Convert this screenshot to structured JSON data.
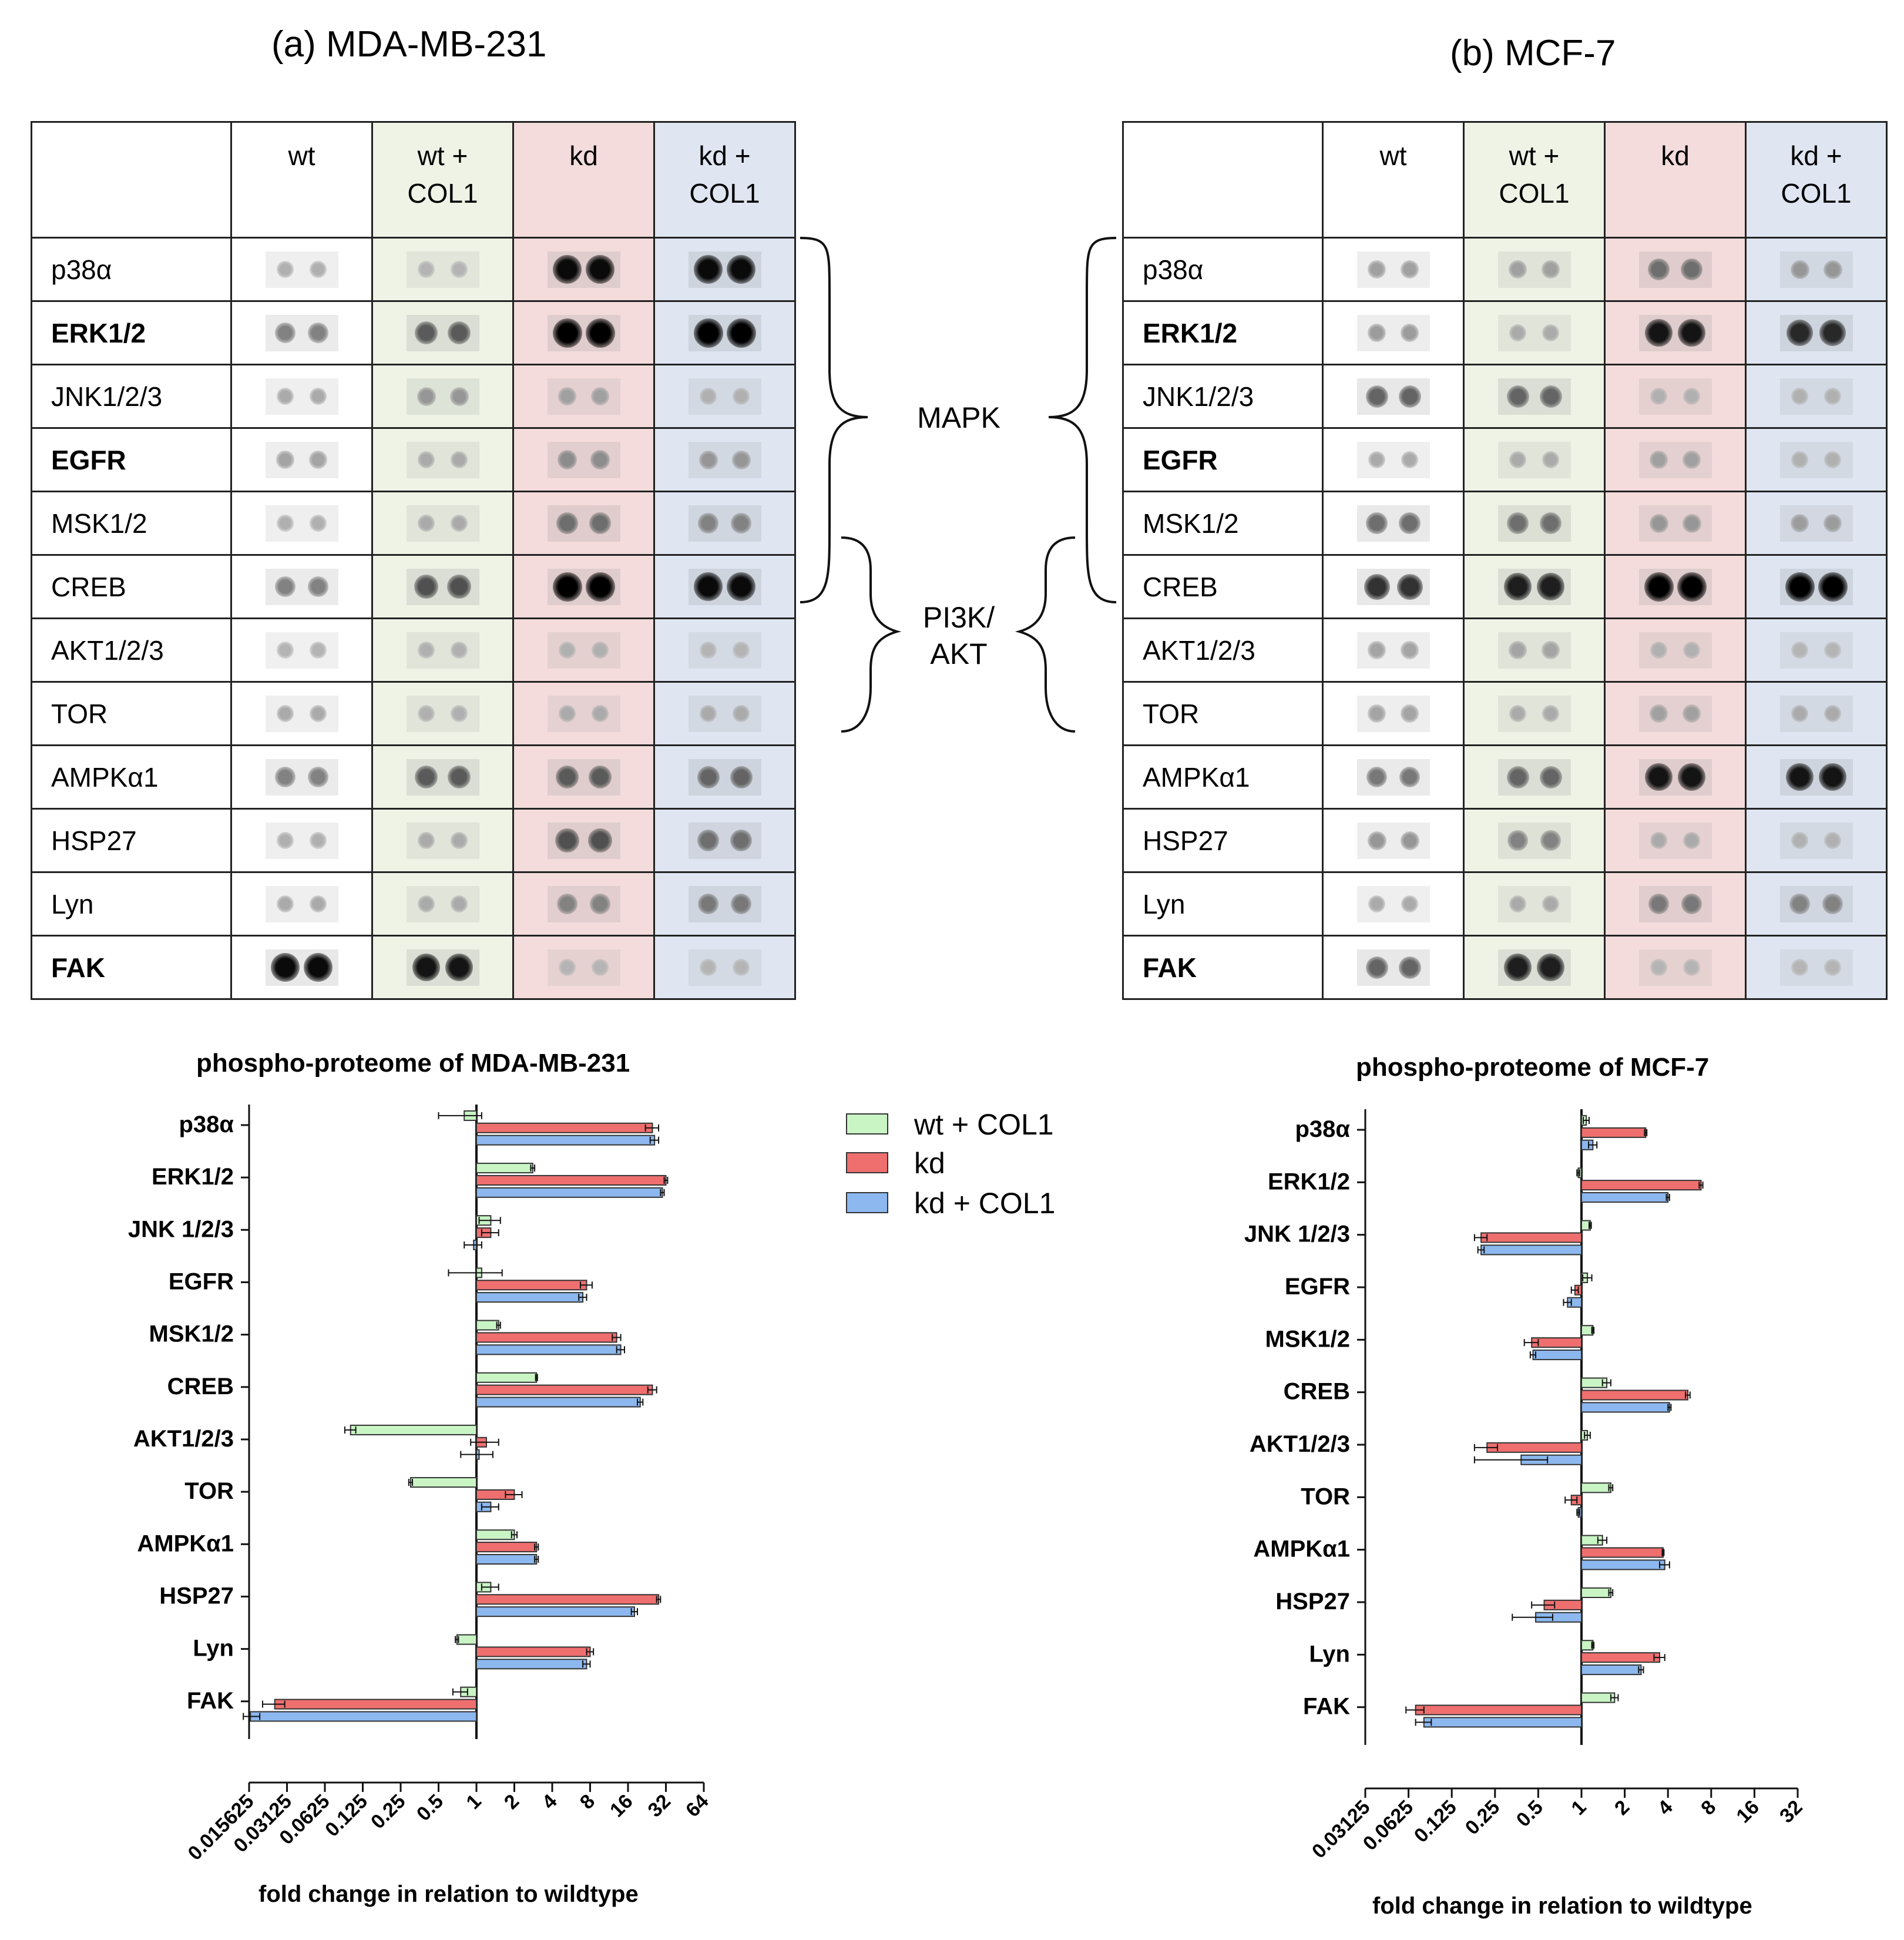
{
  "panels": [
    {
      "title": "(a) MDA-MB-231",
      "columns": [
        "wt",
        "wt +\nCOL1",
        "kd",
        "kd +\nCOL1"
      ],
      "rows": [
        {
          "label": "p38α",
          "bold": false,
          "spots": [
            0.12,
            0.1,
            0.95,
            0.95
          ]
        },
        {
          "label": "ERK1/2",
          "bold": true,
          "spots": [
            0.35,
            0.55,
            1.0,
            1.0
          ]
        },
        {
          "label": "JNK1/2/3",
          "bold": false,
          "spots": [
            0.15,
            0.25,
            0.2,
            0.12
          ]
        },
        {
          "label": "EGFR",
          "bold": true,
          "spots": [
            0.18,
            0.15,
            0.3,
            0.25
          ]
        },
        {
          "label": "MSK1/2",
          "bold": false,
          "spots": [
            0.12,
            0.15,
            0.45,
            0.35
          ]
        },
        {
          "label": "CREB",
          "bold": false,
          "spots": [
            0.35,
            0.6,
            1.0,
            0.95
          ]
        },
        {
          "label": "AKT1/2/3",
          "bold": false,
          "spots": [
            0.1,
            0.12,
            0.12,
            0.1
          ]
        },
        {
          "label": "TOR",
          "bold": false,
          "spots": [
            0.15,
            0.12,
            0.15,
            0.15
          ]
        },
        {
          "label": "AMPKα1",
          "bold": false,
          "spots": [
            0.35,
            0.55,
            0.55,
            0.5
          ]
        },
        {
          "label": "HSP27",
          "bold": false,
          "spots": [
            0.12,
            0.15,
            0.6,
            0.45
          ]
        },
        {
          "label": "Lyn",
          "bold": false,
          "spots": [
            0.15,
            0.15,
            0.35,
            0.4
          ]
        },
        {
          "label": "FAK",
          "bold": true,
          "spots": [
            0.95,
            0.9,
            0.1,
            0.1
          ]
        }
      ]
    },
    {
      "title": "(b) MCF-7",
      "columns": [
        "wt",
        "wt +\nCOL1",
        "kd",
        "kd +\nCOL1"
      ],
      "rows": [
        {
          "label": "p38α",
          "bold": false,
          "spots": [
            0.2,
            0.2,
            0.45,
            0.25
          ]
        },
        {
          "label": "ERK1/2",
          "bold": true,
          "spots": [
            0.22,
            0.15,
            0.9,
            0.8
          ]
        },
        {
          "label": "JNK1/2/3",
          "bold": false,
          "spots": [
            0.5,
            0.5,
            0.12,
            0.12
          ]
        },
        {
          "label": "EGFR",
          "bold": true,
          "spots": [
            0.15,
            0.15,
            0.2,
            0.12
          ]
        },
        {
          "label": "MSK1/2",
          "bold": false,
          "spots": [
            0.45,
            0.45,
            0.25,
            0.22
          ]
        },
        {
          "label": "CREB",
          "bold": false,
          "spots": [
            0.75,
            0.85,
            1.0,
            1.0
          ]
        },
        {
          "label": "AKT1/2/3",
          "bold": false,
          "spots": [
            0.18,
            0.18,
            0.12,
            0.1
          ]
        },
        {
          "label": "TOR",
          "bold": false,
          "spots": [
            0.18,
            0.15,
            0.2,
            0.15
          ]
        },
        {
          "label": "AMPKα1",
          "bold": false,
          "spots": [
            0.4,
            0.5,
            0.9,
            0.9
          ]
        },
        {
          "label": "HSP27",
          "bold": false,
          "spots": [
            0.25,
            0.35,
            0.15,
            0.12
          ]
        },
        {
          "label": "Lyn",
          "bold": false,
          "spots": [
            0.15,
            0.15,
            0.4,
            0.35
          ]
        },
        {
          "label": "FAK",
          "bold": true,
          "spots": [
            0.5,
            0.85,
            0.1,
            0.1
          ]
        }
      ]
    }
  ],
  "bracket_labels": {
    "mapk": "MAPK",
    "pi3k": "PI3K/\nAKT"
  },
  "colors": {
    "wt_col1": "#c9f5c5",
    "kd": "#ef6f6f",
    "kd_col1": "#8cb8ef",
    "bar_stroke": "#333333"
  },
  "chart_data": [
    {
      "type": "bar",
      "orientation": "horizontal",
      "title": "phospho-proteome of MDA-MB-231",
      "xlabel": "fold change in relation to wildtype",
      "ylabel": "",
      "x_scale": "log2",
      "xlim": [
        0.015625,
        64
      ],
      "xticks": [
        "0.015625",
        "0.03125",
        "0.0625",
        "0.125",
        "0.25",
        "0.5",
        "1",
        "2",
        "4",
        "8",
        "16",
        "32",
        "64"
      ],
      "categories": [
        "p38α",
        "ERK1/2",
        "JNK 1/2/3",
        "EGFR",
        "MSK1/2",
        "CREB",
        "AKT1/2/3",
        "TOR",
        "AMPKα1",
        "HSP27",
        "Lyn",
        "FAK"
      ],
      "series": [
        {
          "name": "wt + COL1",
          "values": [
            0.8,
            2.8,
            1.3,
            1.1,
            1.5,
            3.0,
            0.1,
            0.3,
            2.0,
            1.3,
            0.7,
            0.75
          ],
          "errors": [
            0.3,
            0.1,
            0.25,
            0.5,
            0.05,
            0.05,
            0.01,
            0.01,
            0.1,
            0.2,
            0.02,
            0.1
          ]
        },
        {
          "name": "kd",
          "values": [
            25,
            32,
            1.3,
            7.5,
            13,
            25,
            1.2,
            2.0,
            3.0,
            28,
            8,
            0.025
          ],
          "errors": [
            3,
            1,
            0.2,
            0.8,
            1,
            2,
            0.3,
            0.3,
            0.1,
            1,
            0.5,
            0.005
          ]
        },
        {
          "name": "kd + COL1",
          "values": [
            26,
            30,
            0.95,
            7,
            14,
            20,
            1.05,
            1.3,
            3.0,
            18,
            7.5,
            0.016
          ],
          "errors": [
            2,
            1,
            0.15,
            0.5,
            1,
            1,
            0.3,
            0.2,
            0.1,
            1,
            0.5,
            0.003
          ]
        }
      ],
      "legend": "top-right"
    },
    {
      "type": "bar",
      "orientation": "horizontal",
      "title": "phospho-proteome of MCF-7",
      "xlabel": "fold change in relation to wildtype",
      "ylabel": "",
      "x_scale": "log2",
      "xlim": [
        0.03125,
        32
      ],
      "xticks": [
        "0.03125",
        "0.0625",
        "0.125",
        "0.25",
        "0.5",
        "1",
        "2",
        "4",
        "8",
        "16",
        "32"
      ],
      "categories": [
        "p38α",
        "ERK1/2",
        "JNK 1/2/3",
        "EGFR",
        "MSK1/2",
        "CREB",
        "AKT1/2/3",
        "TOR",
        "AMPKα1",
        "HSP27",
        "Lyn",
        "FAK"
      ],
      "series": [
        {
          "name": "wt + COL1",
          "values": [
            1.08,
            0.95,
            1.15,
            1.1,
            1.2,
            1.5,
            1.1,
            1.6,
            1.4,
            1.6,
            1.2,
            1.7
          ],
          "errors": [
            0.05,
            0.02,
            0.02,
            0.08,
            0.02,
            0.1,
            0.05,
            0.05,
            0.1,
            0.05,
            0.02,
            0.1
          ]
        },
        {
          "name": "kd",
          "values": [
            2.8,
            6.8,
            0.2,
            0.9,
            0.45,
            5.5,
            0.22,
            0.85,
            3.7,
            0.55,
            3.5,
            0.07
          ],
          "errors": [
            0.05,
            0.2,
            0.02,
            0.05,
            0.05,
            0.2,
            0.04,
            0.08,
            0.05,
            0.1,
            0.3,
            0.01
          ]
        },
        {
          "name": "kd + COL1",
          "values": [
            1.2,
            4.0,
            0.2,
            0.8,
            0.46,
            4.1,
            0.38,
            0.95,
            3.8,
            0.48,
            2.6,
            0.08
          ],
          "errors": [
            0.08,
            0.1,
            0.01,
            0.05,
            0.02,
            0.1,
            0.2,
            0.02,
            0.3,
            0.15,
            0.1,
            0.01
          ]
        }
      ]
    }
  ]
}
